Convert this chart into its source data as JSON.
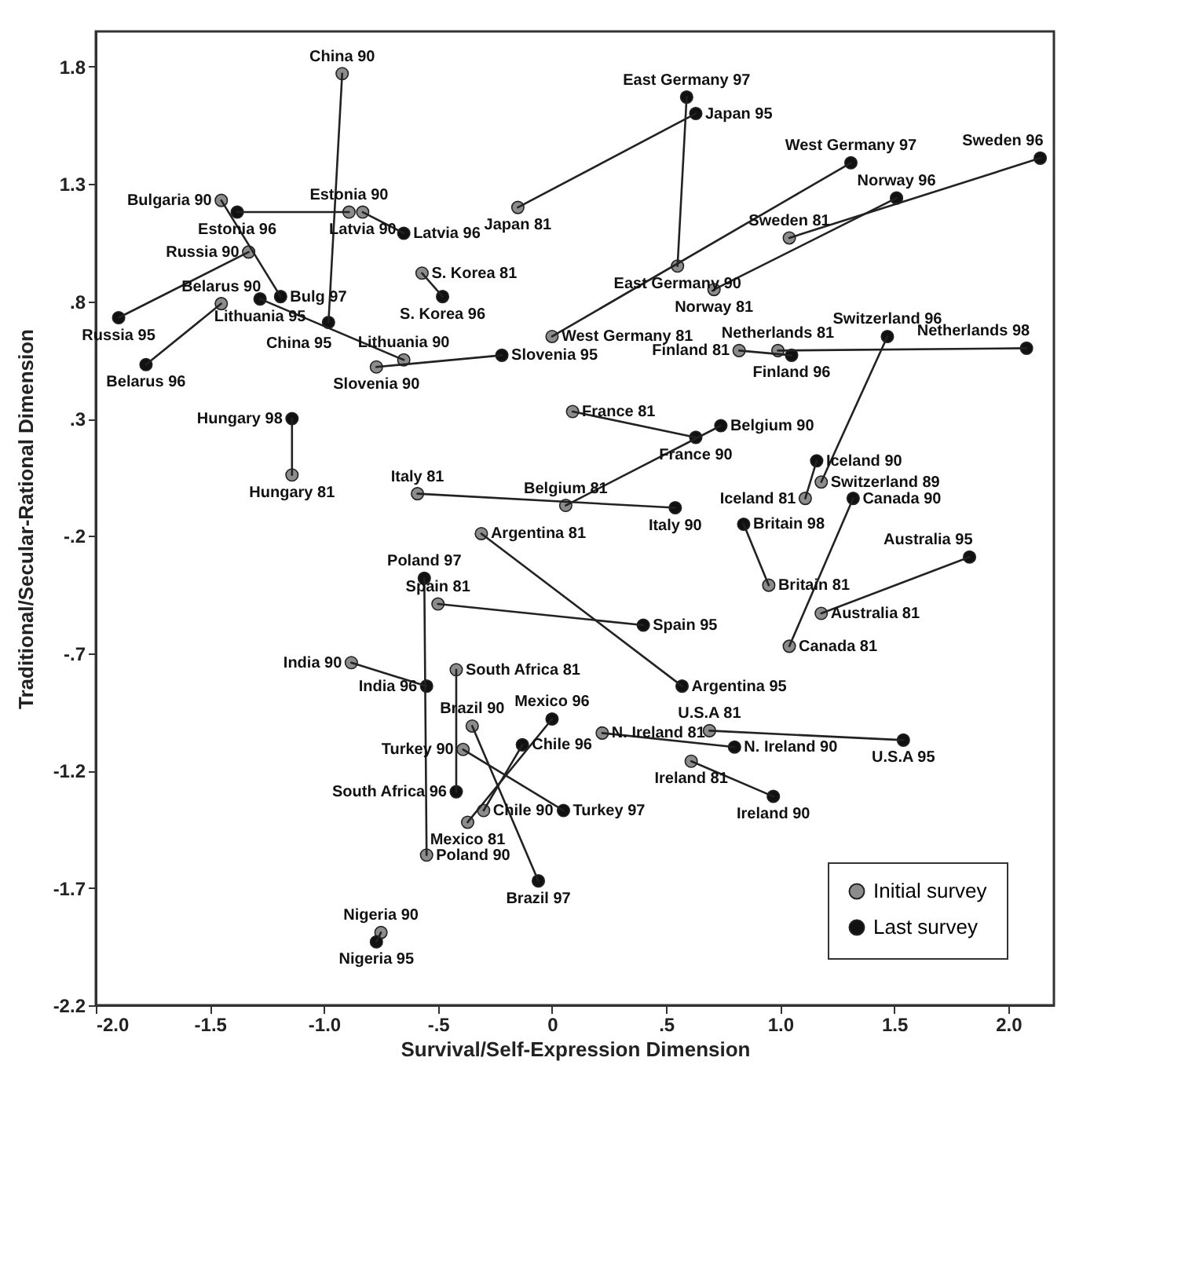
{
  "chart_data": {
    "type": "scatter",
    "xlabel": "Survival/Self-Expression Dimension",
    "ylabel": "Traditional/Secular-Rational Dimension",
    "xlim": [
      -2.0,
      2.2
    ],
    "ylim": [
      -2.2,
      1.95
    ],
    "xticks": [
      {
        "value": -2.0,
        "label": "-2.0"
      },
      {
        "value": -1.5,
        "label": "-1.5"
      },
      {
        "value": -1.0,
        "label": "-1.0"
      },
      {
        "value": -0.5,
        "label": "-.5"
      },
      0,
      {
        "value": 0.5,
        "label": ".5"
      },
      {
        "value": 1.0,
        "label": "1.0"
      },
      {
        "value": 1.5,
        "label": "1.5"
      },
      {
        "value": 2.0,
        "label": "2.0"
      }
    ],
    "yticks": [
      1.8,
      1.3,
      {
        "value": 0.8,
        "label": ".8"
      },
      {
        "value": 0.3,
        "label": ".3"
      },
      {
        "value": -0.2,
        "label": "-.2"
      },
      {
        "value": -0.7,
        "label": "-.7"
      },
      -1.2,
      -1.7,
      -2.2
    ],
    "legend": "bottom right",
    "series": [
      {
        "name": "Initial survey",
        "type": "scatter",
        "marker": "circle",
        "color": "#8c8c8c",
        "x": [
          -0.92,
          -1.45,
          -0.89,
          -0.83,
          -1.33,
          -1.45,
          -0.65,
          -0.77,
          -1.14,
          -0.15,
          0.55,
          -0.57,
          0.0,
          1.04,
          0.71,
          0.82,
          0.99,
          1.18,
          1.11,
          1.04,
          0.95,
          1.18,
          0.69,
          0.22,
          0.61,
          -0.31,
          -0.59,
          0.06,
          0.09,
          -0.55,
          -0.5,
          -0.88,
          -0.42,
          -0.35,
          -0.37,
          -0.3,
          -0.39,
          -0.75
        ],
        "values": [
          1.77,
          1.23,
          1.18,
          1.18,
          1.01,
          0.79,
          0.55,
          0.52,
          0.06,
          1.2,
          0.95,
          0.92,
          0.65,
          1.07,
          0.85,
          0.59,
          0.59,
          0.03,
          -0.04,
          -0.67,
          -0.41,
          -0.53,
          -1.03,
          -1.04,
          -1.16,
          -0.19,
          -0.02,
          -0.07,
          0.33,
          -1.56,
          -0.49,
          -0.74,
          -0.77,
          -1.01,
          -1.42,
          -1.37,
          -1.11,
          -1.89
        ]
      },
      {
        "name": "Last survey",
        "type": "scatter",
        "marker": "circle",
        "color": "#111111",
        "x": [
          -0.98,
          -1.19,
          -1.38,
          -0.65,
          -1.9,
          -1.78,
          -1.28,
          -0.22,
          -1.14,
          0.63,
          0.59,
          -0.48,
          1.31,
          2.14,
          1.51,
          1.05,
          2.08,
          1.47,
          1.16,
          1.32,
          0.84,
          1.83,
          1.54,
          0.8,
          0.97,
          0.57,
          0.54,
          0.74,
          0.63,
          -0.56,
          0.4,
          -0.55,
          -0.42,
          -0.06,
          0.0,
          -0.13,
          0.05,
          -0.77
        ],
        "values": [
          0.71,
          0.82,
          1.18,
          1.09,
          0.73,
          0.53,
          0.81,
          0.57,
          0.3,
          1.6,
          1.67,
          0.82,
          1.39,
          1.41,
          1.24,
          0.57,
          0.6,
          0.65,
          0.12,
          -0.04,
          -0.15,
          -0.29,
          -1.07,
          -1.1,
          -1.31,
          -0.84,
          -0.08,
          0.27,
          0.22,
          -0.38,
          -0.58,
          -0.84,
          -1.29,
          -1.67,
          -0.98,
          -1.09,
          -1.37,
          -1.93
        ]
      },
      {
        "type": "line",
        "color": "#222222",
        "x": [
          -0.92,
          -0.98
        ],
        "values": [
          1.77,
          0.71
        ]
      },
      {
        "type": "line",
        "color": "#222222",
        "x": [
          -1.45,
          -1.19
        ],
        "values": [
          1.23,
          0.82
        ]
      },
      {
        "type": "line",
        "color": "#222222",
        "x": [
          -0.89,
          -1.38
        ],
        "values": [
          1.18,
          1.18
        ]
      },
      {
        "type": "line",
        "color": "#222222",
        "x": [
          -0.83,
          -0.65
        ],
        "values": [
          1.18,
          1.09
        ]
      },
      {
        "type": "line",
        "color": "#222222",
        "x": [
          -1.33,
          -1.9
        ],
        "values": [
          1.01,
          0.73
        ]
      },
      {
        "type": "line",
        "color": "#222222",
        "x": [
          -1.45,
          -1.78
        ],
        "values": [
          0.79,
          0.53
        ]
      },
      {
        "type": "line",
        "color": "#222222",
        "x": [
          -0.65,
          -1.28
        ],
        "values": [
          0.55,
          0.81
        ]
      },
      {
        "type": "line",
        "color": "#222222",
        "x": [
          -0.77,
          -0.22
        ],
        "values": [
          0.52,
          0.57
        ]
      },
      {
        "type": "line",
        "color": "#222222",
        "x": [
          -1.14,
          -1.14
        ],
        "values": [
          0.06,
          0.3
        ]
      },
      {
        "type": "line",
        "color": "#222222",
        "x": [
          -0.15,
          0.63
        ],
        "values": [
          1.2,
          1.6
        ]
      },
      {
        "type": "line",
        "color": "#222222",
        "x": [
          0.55,
          0.59
        ],
        "values": [
          0.95,
          1.67
        ]
      },
      {
        "type": "line",
        "color": "#222222",
        "x": [
          -0.57,
          -0.48
        ],
        "values": [
          0.92,
          0.82
        ]
      },
      {
        "type": "line",
        "color": "#222222",
        "x": [
          0.0,
          1.31
        ],
        "values": [
          0.65,
          1.39
        ]
      },
      {
        "type": "line",
        "color": "#222222",
        "x": [
          1.04,
          2.14
        ],
        "values": [
          1.07,
          1.41
        ]
      },
      {
        "type": "line",
        "color": "#222222",
        "x": [
          0.71,
          1.51
        ],
        "values": [
          0.85,
          1.24
        ]
      },
      {
        "type": "line",
        "color": "#222222",
        "x": [
          0.82,
          1.05
        ],
        "values": [
          0.59,
          0.57
        ]
      },
      {
        "type": "line",
        "color": "#222222",
        "x": [
          0.99,
          2.08
        ],
        "values": [
          0.59,
          0.6
        ]
      },
      {
        "type": "line",
        "color": "#222222",
        "x": [
          1.18,
          1.47
        ],
        "values": [
          0.03,
          0.65
        ]
      },
      {
        "type": "line",
        "color": "#222222",
        "x": [
          1.11,
          1.16
        ],
        "values": [
          -0.04,
          0.12
        ]
      },
      {
        "type": "line",
        "color": "#222222",
        "x": [
          1.04,
          1.32
        ],
        "values": [
          -0.67,
          -0.04
        ]
      },
      {
        "type": "line",
        "color": "#222222",
        "x": [
          0.95,
          0.84
        ],
        "values": [
          -0.41,
          -0.15
        ]
      },
      {
        "type": "line",
        "color": "#222222",
        "x": [
          1.18,
          1.83
        ],
        "values": [
          -0.53,
          -0.29
        ]
      },
      {
        "type": "line",
        "color": "#222222",
        "x": [
          0.69,
          1.54
        ],
        "values": [
          -1.03,
          -1.07
        ]
      },
      {
        "type": "line",
        "color": "#222222",
        "x": [
          0.22,
          0.8
        ],
        "values": [
          -1.04,
          -1.1
        ]
      },
      {
        "type": "line",
        "color": "#222222",
        "x": [
          0.61,
          0.97
        ],
        "values": [
          -1.16,
          -1.31
        ]
      },
      {
        "type": "line",
        "color": "#222222",
        "x": [
          -0.31,
          0.57
        ],
        "values": [
          -0.19,
          -0.84
        ]
      },
      {
        "type": "line",
        "color": "#222222",
        "x": [
          -0.59,
          0.54
        ],
        "values": [
          -0.02,
          -0.08
        ]
      },
      {
        "type": "line",
        "color": "#222222",
        "x": [
          0.06,
          0.74
        ],
        "values": [
          -0.07,
          0.27
        ]
      },
      {
        "type": "line",
        "color": "#222222",
        "x": [
          0.09,
          0.63
        ],
        "values": [
          0.33,
          0.22
        ]
      },
      {
        "type": "line",
        "color": "#222222",
        "x": [
          -0.55,
          -0.56
        ],
        "values": [
          -1.56,
          -0.38
        ]
      },
      {
        "type": "line",
        "color": "#222222",
        "x": [
          -0.5,
          0.4
        ],
        "values": [
          -0.49,
          -0.58
        ]
      },
      {
        "type": "line",
        "color": "#222222",
        "x": [
          -0.88,
          -0.55
        ],
        "values": [
          -0.74,
          -0.84
        ]
      },
      {
        "type": "line",
        "color": "#222222",
        "x": [
          -0.42,
          -0.42
        ],
        "values": [
          -0.77,
          -1.29
        ]
      },
      {
        "type": "line",
        "color": "#222222",
        "x": [
          -0.35,
          -0.06
        ],
        "values": [
          -1.01,
          -1.67
        ]
      },
      {
        "type": "line",
        "color": "#222222",
        "x": [
          -0.37,
          0.0
        ],
        "values": [
          -1.42,
          -0.98
        ]
      },
      {
        "type": "line",
        "color": "#222222",
        "x": [
          -0.3,
          -0.13
        ],
        "values": [
          -1.37,
          -1.09
        ]
      },
      {
        "type": "line",
        "color": "#222222",
        "x": [
          -0.39,
          0.05
        ],
        "values": [
          -1.11,
          -1.37
        ]
      },
      {
        "type": "line",
        "color": "#222222",
        "x": [
          -0.75,
          -0.77
        ],
        "values": [
          -1.89,
          -1.93
        ]
      }
    ],
    "annotations": [
      {
        "text": "China 90",
        "x": -0.92,
        "y": 1.77
      },
      {
        "text": "Bulgaria 90",
        "x": -1.45,
        "y": 1.23
      },
      {
        "text": "Estonia 90",
        "x": -0.89,
        "y": 1.18
      },
      {
        "text": "Latvia 90",
        "x": -0.83,
        "y": 1.18
      },
      {
        "text": "Russia 90",
        "x": -1.33,
        "y": 1.01
      },
      {
        "text": "Belarus 90",
        "x": -1.45,
        "y": 0.79
      },
      {
        "text": "Lithuania 90",
        "x": -0.65,
        "y": 0.55
      },
      {
        "text": "Slovenia 90",
        "x": -0.77,
        "y": 0.52
      },
      {
        "text": "Hungary 81",
        "x": -1.14,
        "y": 0.06
      },
      {
        "text": "Japan 81",
        "x": -0.15,
        "y": 1.2
      },
      {
        "text": "East Germany 90",
        "x": 0.55,
        "y": 0.95
      },
      {
        "text": "S. Korea 81",
        "x": -0.57,
        "y": 0.92
      },
      {
        "text": "West Germany 81",
        "x": 0.0,
        "y": 0.65
      },
      {
        "text": "Sweden 81",
        "x": 1.04,
        "y": 1.07
      },
      {
        "text": "Norway 81",
        "x": 0.71,
        "y": 0.85
      },
      {
        "text": "Finland 81",
        "x": 0.82,
        "y": 0.59
      },
      {
        "text": "Netherlands 81",
        "x": 0.99,
        "y": 0.59
      },
      {
        "text": "Switzerland 89",
        "x": 1.18,
        "y": 0.03
      },
      {
        "text": "Iceland 81",
        "x": 1.11,
        "y": -0.04
      },
      {
        "text": "Canada 81",
        "x": 1.04,
        "y": -0.67
      },
      {
        "text": "Britain 81",
        "x": 0.95,
        "y": -0.41
      },
      {
        "text": "Australia 81",
        "x": 1.18,
        "y": -0.53
      },
      {
        "text": "U.S.A 81",
        "x": 0.69,
        "y": -1.03
      },
      {
        "text": "N. Ireland 81",
        "x": 0.22,
        "y": -1.04
      },
      {
        "text": "Ireland 81",
        "x": 0.61,
        "y": -1.16
      },
      {
        "text": "Argentina 81",
        "x": -0.31,
        "y": -0.19
      },
      {
        "text": "Italy 81",
        "x": -0.59,
        "y": -0.02
      },
      {
        "text": "Belgium 81",
        "x": 0.06,
        "y": -0.07
      },
      {
        "text": "France 81",
        "x": 0.09,
        "y": 0.33
      },
      {
        "text": "Poland 90",
        "x": -0.55,
        "y": -1.56
      },
      {
        "text": "Spain 81",
        "x": -0.5,
        "y": -0.49
      },
      {
        "text": "India 90",
        "x": -0.88,
        "y": -0.74
      },
      {
        "text": "South Africa 81",
        "x": -0.42,
        "y": -0.77
      },
      {
        "text": "Brazil 90",
        "x": -0.35,
        "y": -1.01
      },
      {
        "text": "Mexico 81",
        "x": -0.37,
        "y": -1.42
      },
      {
        "text": "Chile 90",
        "x": -0.3,
        "y": -1.37
      },
      {
        "text": "Turkey 90",
        "x": -0.39,
        "y": -1.11
      },
      {
        "text": "Nigeria 90",
        "x": -0.75,
        "y": -1.89
      },
      {
        "text": "China 95",
        "x": -0.98,
        "y": 0.71
      },
      {
        "text": "Bulg 97",
        "x": -1.19,
        "y": 0.82
      },
      {
        "text": "Estonia 96",
        "x": -1.38,
        "y": 1.18
      },
      {
        "text": "Latvia 96",
        "x": -0.65,
        "y": 1.09
      },
      {
        "text": "Russia 95",
        "x": -1.9,
        "y": 0.73
      },
      {
        "text": "Belarus 96",
        "x": -1.78,
        "y": 0.53
      },
      {
        "text": "Lithuania 95",
        "x": -1.28,
        "y": 0.81
      },
      {
        "text": "Slovenia 95",
        "x": -0.22,
        "y": 0.57
      },
      {
        "text": "Hungary 98",
        "x": -1.14,
        "y": 0.3
      },
      {
        "text": "Japan 95",
        "x": 0.63,
        "y": 1.6
      },
      {
        "text": "East Germany 97",
        "x": 0.59,
        "y": 1.67
      },
      {
        "text": "S. Korea 96",
        "x": -0.48,
        "y": 0.82
      },
      {
        "text": "West Germany 97",
        "x": 1.31,
        "y": 1.39
      },
      {
        "text": "Sweden 96",
        "x": 2.14,
        "y": 1.41
      },
      {
        "text": "Norway 96",
        "x": 1.51,
        "y": 1.24
      },
      {
        "text": "Finland 96",
        "x": 1.05,
        "y": 0.57
      },
      {
        "text": "Netherlands 98",
        "x": 2.08,
        "y": 0.6
      },
      {
        "text": "Switzerland 96",
        "x": 1.47,
        "y": 0.65
      },
      {
        "text": "Iceland 90",
        "x": 1.16,
        "y": 0.12
      },
      {
        "text": "Canada 90",
        "x": 1.32,
        "y": -0.04
      },
      {
        "text": "Britain 98",
        "x": 0.84,
        "y": -0.15
      },
      {
        "text": "Australia 95",
        "x": 1.83,
        "y": -0.29
      },
      {
        "text": "U.S.A 95",
        "x": 1.54,
        "y": -1.07
      },
      {
        "text": "N. Ireland 90",
        "x": 0.8,
        "y": -1.1
      },
      {
        "text": "Ireland 90",
        "x": 0.97,
        "y": -1.31
      },
      {
        "text": "Argentina 95",
        "x": 0.57,
        "y": -0.84
      },
      {
        "text": "Italy 90",
        "x": 0.54,
        "y": -0.08
      },
      {
        "text": "Belgium 90",
        "x": 0.74,
        "y": 0.27
      },
      {
        "text": "France 90",
        "x": 0.63,
        "y": 0.22
      },
      {
        "text": "Poland 97",
        "x": -0.56,
        "y": -0.38
      },
      {
        "text": "Spain 95",
        "x": 0.4,
        "y": -0.58
      },
      {
        "text": "India 96",
        "x": -0.55,
        "y": -0.84
      },
      {
        "text": "South Africa 96",
        "x": -0.42,
        "y": -1.29
      },
      {
        "text": "Brazil 97",
        "x": -0.06,
        "y": -1.67
      },
      {
        "text": "Mexico 96",
        "x": 0.0,
        "y": -0.98
      },
      {
        "text": "Chile 96",
        "x": -0.13,
        "y": -1.09
      },
      {
        "text": "Turkey 97",
        "x": 0.05,
        "y": -1.37
      },
      {
        "text": "Nigeria 95",
        "x": -0.77,
        "y": -1.93
      }
    ]
  }
}
